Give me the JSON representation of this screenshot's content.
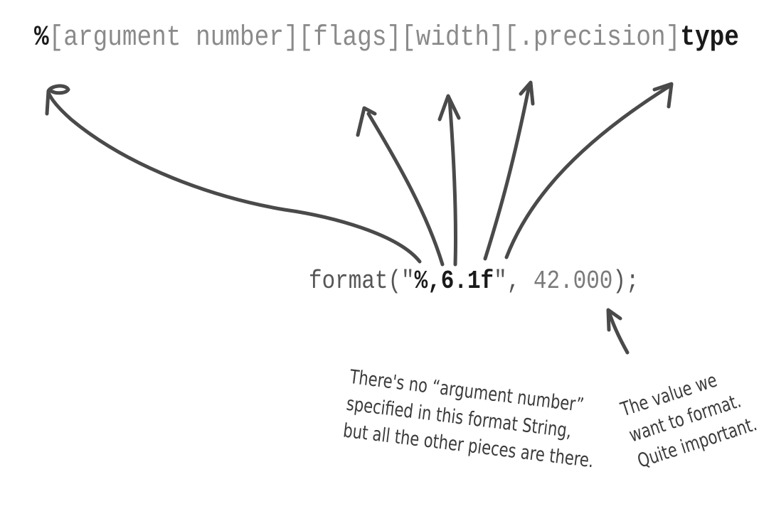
{
  "syntax": {
    "percent": "%",
    "argument_number": "[argument number]",
    "flags": "[flags]",
    "width": "[width]",
    "precision": "[.precision]",
    "type": "type"
  },
  "code": {
    "prefix": "format(\"",
    "percent": "%",
    "flags": ",",
    "width": "6",
    "precision": ".1",
    "type": "f",
    "close_quote": "\", ",
    "value": "42.000",
    "suffix": ");"
  },
  "notes": {
    "left": [
      "There's no “argument number”",
      "specified in this format String,",
      "but all the other pieces are there."
    ],
    "right": [
      "The value we",
      "want to format.",
      "Quite important."
    ]
  },
  "colors": {
    "arrow": "#4a4a4a",
    "light_text": "#8a8a8a",
    "dark_text": "#1a1a1a",
    "note_text": "#3b3b3b"
  }
}
